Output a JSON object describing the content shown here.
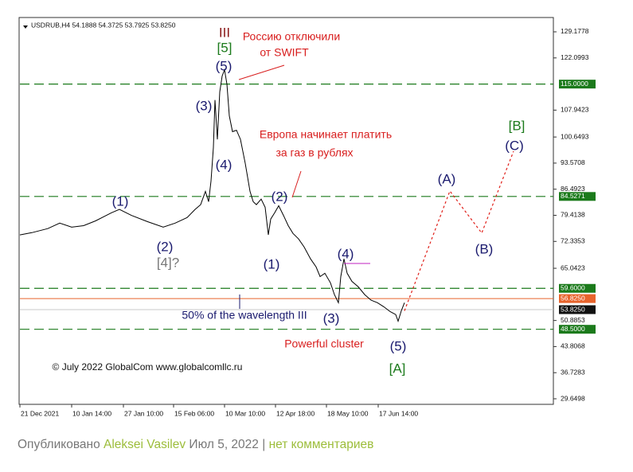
{
  "chart_data": {
    "type": "line",
    "header": "USDRUB,H4  54.1888 54.3725 53.7925 53.8250",
    "xlim": [
      0,
      167.5
    ],
    "ylim": [
      28.14,
      133.06
    ],
    "xticks": [
      {
        "value": 0,
        "label": "21 Dec 2021"
      },
      {
        "value": 16.25,
        "label": "10 Jan 14:00"
      },
      {
        "value": 32.5,
        "label": "27 Jan 10:00"
      },
      {
        "value": 48.25,
        "label": "15 Feb 06:00"
      },
      {
        "value": 64.25,
        "label": "10 Mar 10:00"
      },
      {
        "value": 80.25,
        "label": "12 Apr 18:00"
      },
      {
        "value": 96.25,
        "label": "18 May 10:00"
      },
      {
        "value": 112.5,
        "label": "17 Jun 14:00"
      }
    ],
    "yticks": [
      129.1778,
      122.0993,
      107.9423,
      100.6493,
      93.5708,
      86.4923,
      79.4138,
      72.3353,
      65.0423,
      50.8853,
      43.8068,
      36.7283,
      29.6498
    ],
    "levels": [
      {
        "value": {
          "value": 115,
          "label": "115.0000"
        },
        "color": "#1b7a1b",
        "style": "dashed"
      },
      {
        "value": {
          "value": 84.5271,
          "label": "84.5271"
        },
        "color": "#1b7a1b",
        "style": "dashed"
      },
      {
        "value": {
          "value": 59.6,
          "label": "59.6000"
        },
        "color": "#1b7a1b",
        "style": "dashed"
      },
      {
        "value": {
          "value": 56.825,
          "label": "56.8250"
        },
        "color": "#e8642c",
        "style": "solid"
      },
      {
        "value": {
          "value": 53.825,
          "label": "53.8250"
        },
        "color": "#111111",
        "style": "solid"
      },
      {
        "value": {
          "value": 48.5,
          "label": "48.5000"
        },
        "color": "#1b7a1b",
        "style": "dashed"
      }
    ],
    "series": [
      {
        "color": "#000000",
        "style": "solid",
        "x": [
          0,
          3.75,
          8.75,
          12.5,
          16.25,
          20,
          23.75,
          28.75,
          31.25,
          35,
          40,
          45,
          48.75,
          52.5,
          55,
          56.75,
          58.25,
          59.25,
          60,
          60.75,
          61.25,
          62,
          62.75,
          63.5,
          64.25,
          65,
          65.75,
          66.75,
          68,
          69.25,
          70.75,
          72.25,
          73.25,
          74.25,
          75.75,
          77,
          78,
          78.75,
          80,
          81.25,
          82.75,
          84.25,
          85.75,
          87.5,
          89.25,
          91.25,
          93,
          94.25,
          95.75,
          97.5,
          98.75,
          100,
          100.75,
          101.75,
          102.75,
          104.25,
          106.25,
          108.25,
          110.25,
          112.25,
          114.25,
          116.25,
          118,
          118.75,
          119.75,
          120.75
        ],
        "values": [
          74.1,
          74.7,
          75.8,
          77.3,
          76.2,
          76.6,
          77.9,
          80.1,
          81,
          79.4,
          77.7,
          76.2,
          77.3,
          78.8,
          81,
          82.3,
          85.9,
          83.1,
          88.7,
          97.8,
          110.7,
          100,
          112.9,
          117.2,
          118.9,
          115,
          106.4,
          102.1,
          102.5,
          100,
          93.5,
          85.9,
          83.1,
          82.3,
          83.8,
          81.6,
          74.1,
          78.4,
          80.1,
          82,
          79.4,
          76.6,
          74.5,
          73,
          70.8,
          67.6,
          65.4,
          62.8,
          63.7,
          61.1,
          57.9,
          55.7,
          62.8,
          67.6,
          63.7,
          61.5,
          60,
          57.9,
          56.4,
          55.7,
          54.6,
          53.3,
          52.5,
          50.7,
          53.5,
          55.7
        ]
      },
      {
        "color": "#e0201a",
        "style": "dotted",
        "x": [
          120.75,
          135,
          145,
          155
        ],
        "values": [
          53.5,
          86,
          74.6,
          96.8
        ]
      }
    ],
    "annotations": [
      "III",
      "[5]",
      "(5)",
      "(3)",
      "(4)",
      "(1)",
      "(2)",
      "[4]?",
      "(2)",
      "(1)",
      "(4)",
      "(3)",
      "(5)",
      "[A]",
      "(A)",
      "(B)",
      "(C)",
      "[B]",
      "Россию отключили",
      "от SWIFT",
      "Европа начинает платить",
      "за газ в рублях",
      "50% of the wavelength III",
      "Powerful cluster",
      "© July 2022 GlobalCom www.globalcomllc.ru"
    ]
  },
  "caption": {
    "prefix": "Опубликовано",
    "author": "Aleksei Vasilev",
    "date": "Июл 5, 2022 |",
    "comments": "нет комментариев"
  }
}
